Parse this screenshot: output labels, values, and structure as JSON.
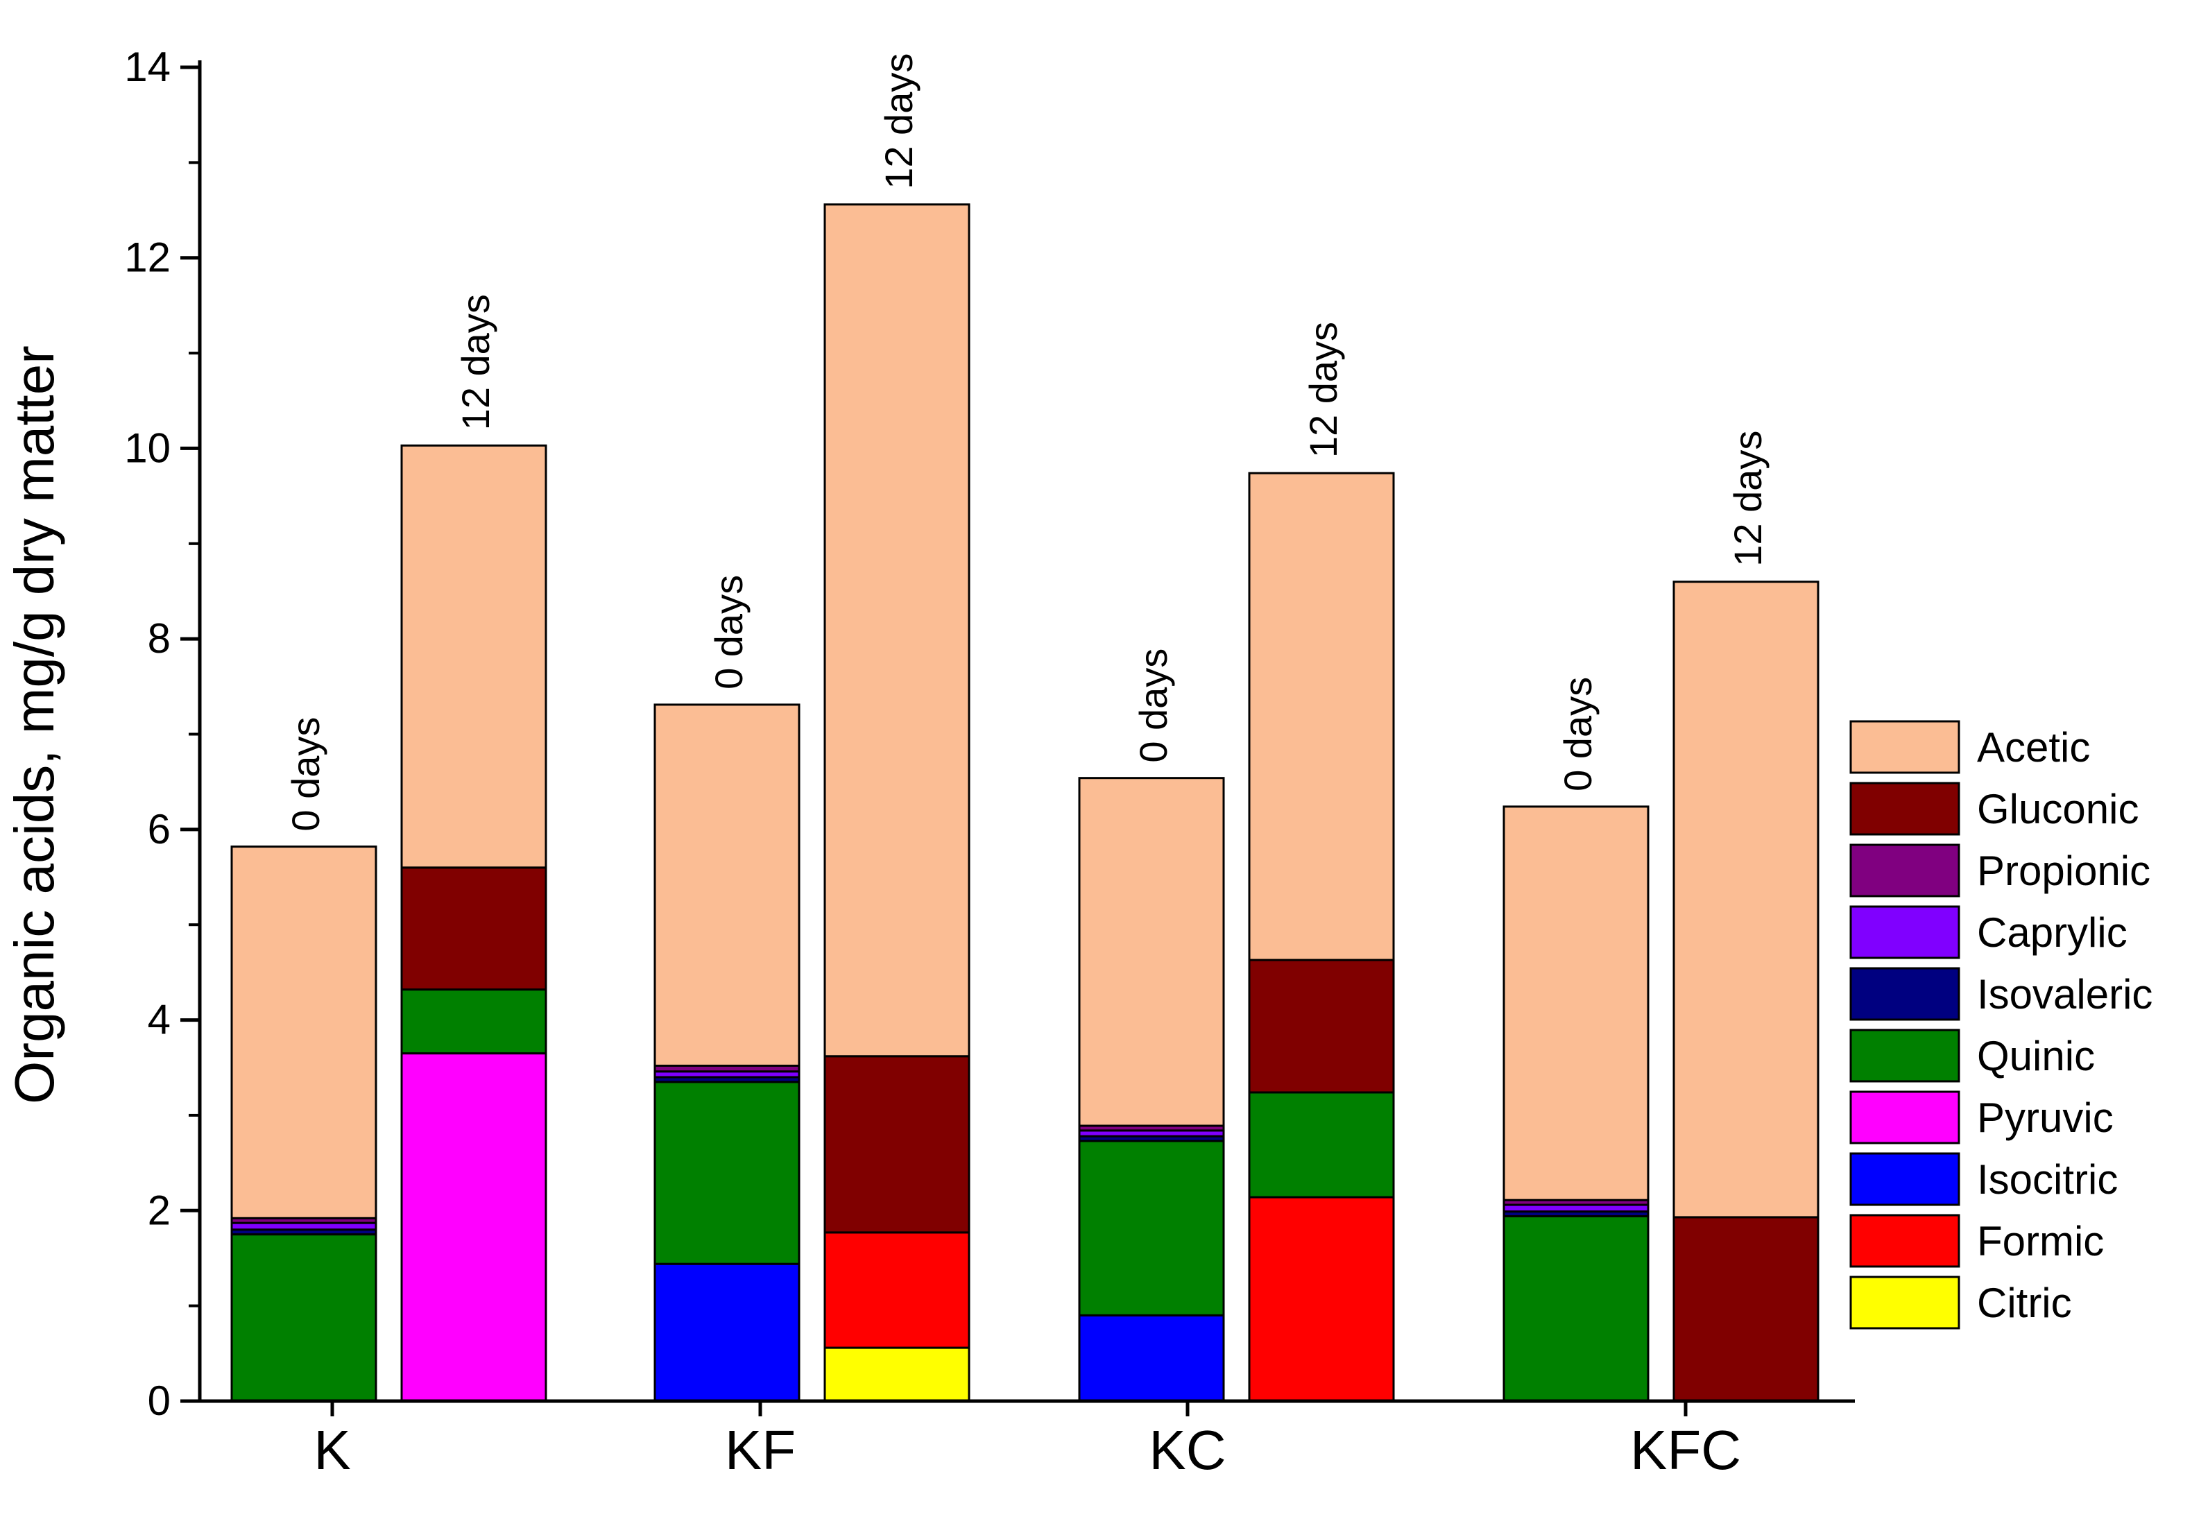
{
  "chart_data": {
    "type": "bar",
    "stacked": true,
    "title": "",
    "xlabel": "",
    "ylabel": "Organic acids, mg/g dry matter",
    "ylim": [
      0,
      14
    ],
    "yticks": [
      0,
      2,
      4,
      6,
      8,
      10,
      12,
      14
    ],
    "ytick_labels": [
      "0",
      "2",
      "4",
      "6",
      "8",
      "10",
      "12",
      "14"
    ],
    "groups": [
      "K",
      "KF",
      "KC",
      "KFC"
    ],
    "bar_labels": [
      "0 days",
      "12 days"
    ],
    "legend_position": "right",
    "legend_order": [
      "Acetic",
      "Gluconic",
      "Propionic",
      "Caprylic",
      "Isovaleric",
      "Quinic",
      "Pyruvic",
      "Isocitric",
      "Formic",
      "Citric"
    ],
    "colors": {
      "Citric": "#ffff00",
      "Formic": "#ff0000",
      "Isocitric": "#0000ff",
      "Pyruvic": "#ff00ff",
      "Quinic": "#008000",
      "Isovaleric": "#000080",
      "Caprylic": "#8000ff",
      "Propionic": "#800080",
      "Gluconic": "#800000",
      "Acetic": "#fbbd94"
    },
    "stack_order": [
      "Citric",
      "Formic",
      "Isocitric",
      "Pyruvic",
      "Quinic",
      "Isovaleric",
      "Caprylic",
      "Propionic",
      "Gluconic",
      "Acetic"
    ],
    "bars": [
      {
        "group": "K",
        "label": "0 days",
        "total": 5.82,
        "segments": [
          {
            "acid": "Quinic",
            "value": 1.75
          },
          {
            "acid": "Isovaleric",
            "value": 0.05
          },
          {
            "acid": "Caprylic",
            "value": 0.07
          },
          {
            "acid": "Propionic",
            "value": 0.05
          },
          {
            "acid": "Acetic",
            "value": 3.9
          }
        ]
      },
      {
        "group": "K",
        "label": "12 days",
        "total": 10.03,
        "segments": [
          {
            "acid": "Pyruvic",
            "value": 3.65
          },
          {
            "acid": "Quinic",
            "value": 0.67
          },
          {
            "acid": "Gluconic",
            "value": 1.28
          },
          {
            "acid": "Acetic",
            "value": 4.43
          }
        ]
      },
      {
        "group": "KF",
        "label": "0 days",
        "total": 7.31,
        "segments": [
          {
            "acid": "Isocitric",
            "value": 1.44
          },
          {
            "acid": "Quinic",
            "value": 1.91
          },
          {
            "acid": "Isovaleric",
            "value": 0.05
          },
          {
            "acid": "Caprylic",
            "value": 0.06
          },
          {
            "acid": "Propionic",
            "value": 0.06
          },
          {
            "acid": "Acetic",
            "value": 3.79
          }
        ]
      },
      {
        "group": "KF",
        "label": "12 days",
        "total": 12.56,
        "segments": [
          {
            "acid": "Citric",
            "value": 0.56
          },
          {
            "acid": "Formic",
            "value": 1.21
          },
          {
            "acid": "Gluconic",
            "value": 1.85
          },
          {
            "acid": "Acetic",
            "value": 8.94
          }
        ]
      },
      {
        "group": "KC",
        "label": "0 days",
        "total": 6.54,
        "segments": [
          {
            "acid": "Isocitric",
            "value": 0.9
          },
          {
            "acid": "Quinic",
            "value": 1.83
          },
          {
            "acid": "Isovaleric",
            "value": 0.05
          },
          {
            "acid": "Caprylic",
            "value": 0.06
          },
          {
            "acid": "Propionic",
            "value": 0.05
          },
          {
            "acid": "Acetic",
            "value": 3.65
          }
        ]
      },
      {
        "group": "KC",
        "label": "12 days",
        "total": 9.74,
        "segments": [
          {
            "acid": "Formic",
            "value": 2.14
          },
          {
            "acid": "Quinic",
            "value": 1.1
          },
          {
            "acid": "Gluconic",
            "value": 1.39
          },
          {
            "acid": "Acetic",
            "value": 5.11
          }
        ]
      },
      {
        "group": "KFC",
        "label": "0 days",
        "total": 6.24,
        "segments": [
          {
            "acid": "Quinic",
            "value": 1.94
          },
          {
            "acid": "Isovaleric",
            "value": 0.05
          },
          {
            "acid": "Caprylic",
            "value": 0.07
          },
          {
            "acid": "Propionic",
            "value": 0.05
          },
          {
            "acid": "Acetic",
            "value": 4.13
          }
        ]
      },
      {
        "group": "KFC",
        "label": "12 days",
        "total": 8.6,
        "segments": [
          {
            "acid": "Gluconic",
            "value": 1.93
          },
          {
            "acid": "Acetic",
            "value": 6.67
          }
        ]
      }
    ]
  }
}
